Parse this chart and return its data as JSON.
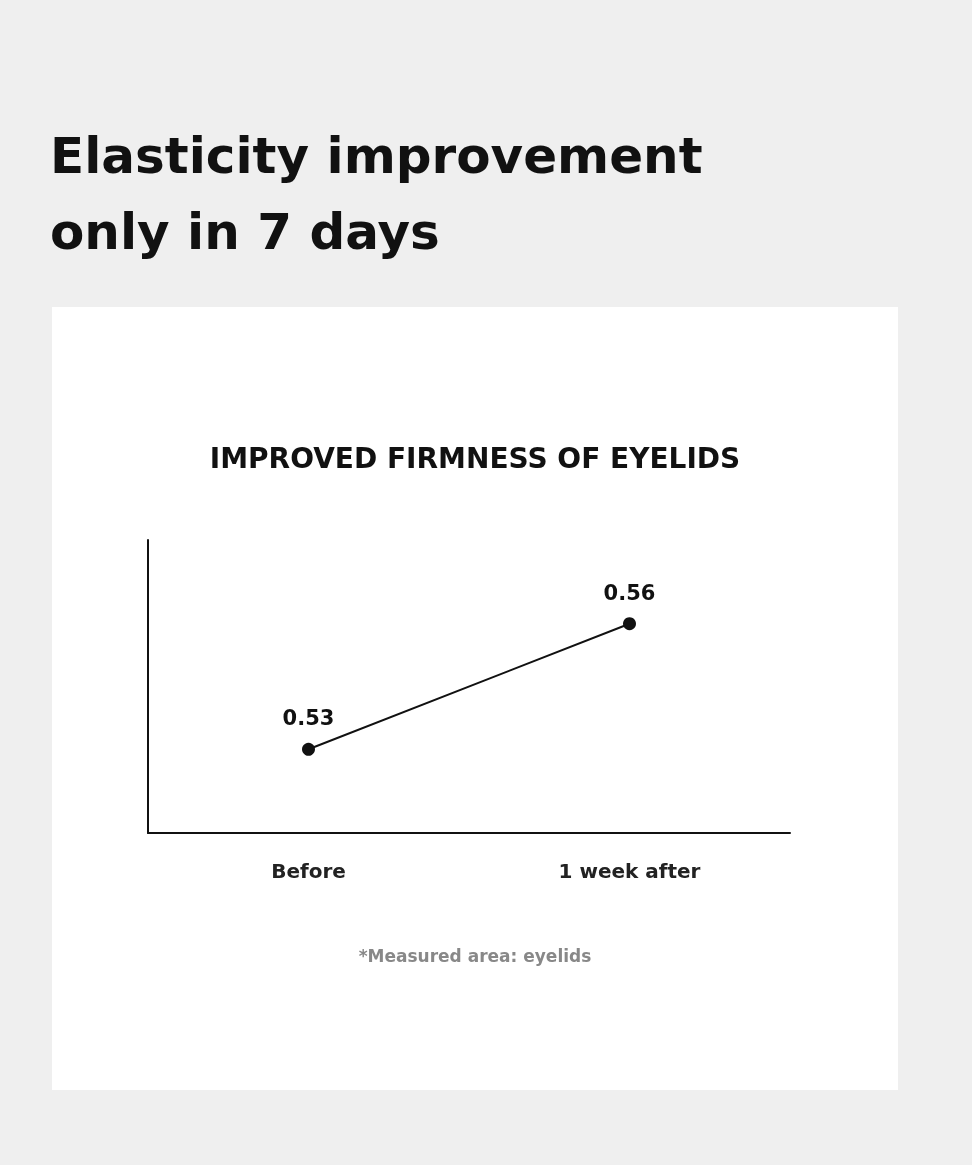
{
  "chart_data": {
    "type": "line",
    "title": "Elasticity improvement only in 7 days",
    "subtitle": "IMPROVED FIRMNESS OF EYELIDS",
    "categories": [
      "Before",
      "1 week after"
    ],
    "series": [
      {
        "color": "#111111",
        "values": [
          0.53,
          0.56
        ]
      }
    ],
    "ylim": [
      0.51,
      0.58
    ],
    "tick_labels": "x",
    "data_labels": true,
    "marker": "circle",
    "grid": false,
    "annotations": [
      "*Measured area: eyelids"
    ]
  }
}
